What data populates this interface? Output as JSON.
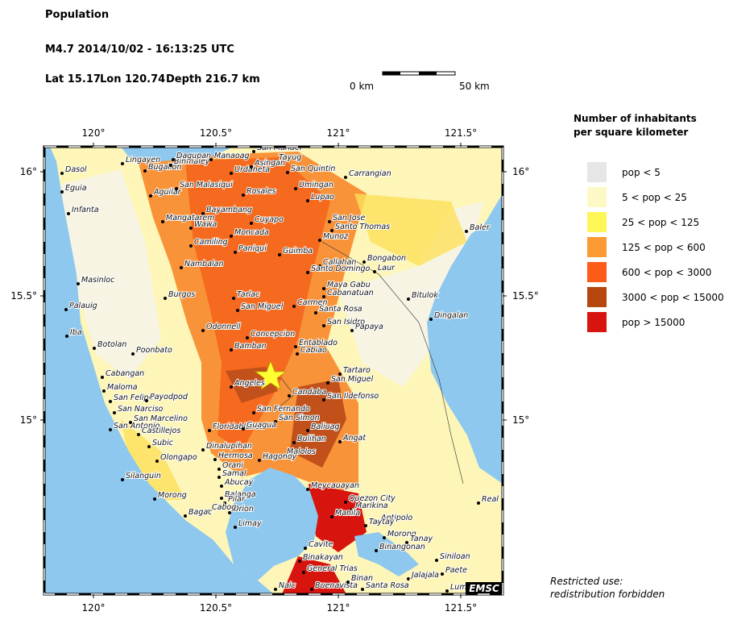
{
  "header": {
    "title": "Population",
    "event": "M4.7  2014/10/02 - 16:13:25 UTC",
    "lat": "Lat 15.17",
    "lon": "Lon 120.74",
    "depth": "Depth 216.7 km"
  },
  "scale_bar": {
    "start": "0 km",
    "end": "50 km"
  },
  "map": {
    "lon_ticks": [
      {
        "value": 120,
        "label": "120°"
      },
      {
        "value": 120.5,
        "label": "120.5°"
      },
      {
        "value": 121,
        "label": "121°"
      },
      {
        "value": 121.5,
        "label": "121.5°"
      }
    ],
    "lat_ticks": [
      {
        "value": 15,
        "label": "15°"
      },
      {
        "value": 15.5,
        "label": "15.5°"
      },
      {
        "value": 16,
        "label": "16°"
      }
    ],
    "cities": [
      "Dasol",
      "Lingayen",
      "Bugallon",
      "Binmaley",
      "Dagupan",
      "Manaoag",
      "Urdaneta",
      "Tayug",
      "San Manuel",
      "Asingan",
      "San Quintin",
      "Carrangian",
      "Eguia",
      "Aguilar",
      "San Malasiqui",
      "Rosales",
      "Umingan",
      "Lupao",
      "Infanta",
      "Bayambang",
      "Mangatarem",
      "Cuyapo",
      "San Jose",
      "Santo Thomas",
      "Baler",
      "Wawa",
      "Moncada",
      "Munoz",
      "Camiling",
      "Paniqui",
      "Guimba",
      "Bongabon",
      "Nambalan",
      "Callahan",
      "Santo Domingo",
      "Laur",
      "Masinloc",
      "Burgos",
      "Tarlac",
      "Maya Gabu",
      "Cabanatuan",
      "Bitulok",
      "Palauig",
      "San Miguel",
      "Carmen",
      "Santa Rosa",
      "Dingalan",
      "San Isidro",
      "Papaya",
      "Odonnell",
      "Concepcion",
      "Iba",
      "Botolan",
      "Poonbato",
      "Bamban",
      "Entablado",
      "Cabiao",
      "Cabangan",
      "Angeles",
      "Tartaro",
      "San Miguel",
      "Maloma",
      "Candaba",
      "San Ildefonso",
      "San Felipe",
      "Payodpod",
      "San Narciso",
      "San Fernando",
      "San Marcelino",
      "San Simon",
      "San Antonio",
      "Castillejos",
      "Floridablanca",
      "Guagua",
      "Baliuag",
      "Bulihan",
      "Angat",
      "Subic",
      "Dinalupihan",
      "Malolos",
      "Olongapo",
      "Hermosa",
      "Hagonoy",
      "Orani",
      "Samal",
      "Silanguin",
      "Abucay",
      "Meycauayan",
      "Morong",
      "Balanga",
      "Pilar",
      "Quezon City",
      "Orion",
      "Cabog",
      "Bagac",
      "Marikina",
      "Manila",
      "Real",
      "Antipolo",
      "Taytay",
      "Limay",
      "Morong",
      "Tanay",
      "Binangonan",
      "Cavite",
      "Siniloan",
      "Binakayan",
      "General Trias",
      "Paete",
      "Jalajala",
      "Naic",
      "Buenavista",
      "Binan",
      "Santa Rosa",
      "Lumban"
    ],
    "badge": "EMSC"
  },
  "legend": {
    "title": [
      "Number of inhabitants",
      "per square kilometer"
    ],
    "items": [
      {
        "label": "pop < 5",
        "color": "#e6e6e6"
      },
      {
        "label": "5 < pop < 25",
        "color": "#fdf9c6"
      },
      {
        "label": "25 < pop < 125",
        "color": "#fdf657"
      },
      {
        "label": "125 < pop < 600",
        "color": "#fc9b33"
      },
      {
        "label": "600 < pop < 3000",
        "color": "#fc5b1a"
      },
      {
        "label": "3000 < pop < 15000",
        "color": "#b5470f"
      },
      {
        "label": "pop > 15000",
        "color": "#d8140f"
      }
    ]
  },
  "footer": [
    "Restricted use:",
    "redistribution forbidden"
  ]
}
